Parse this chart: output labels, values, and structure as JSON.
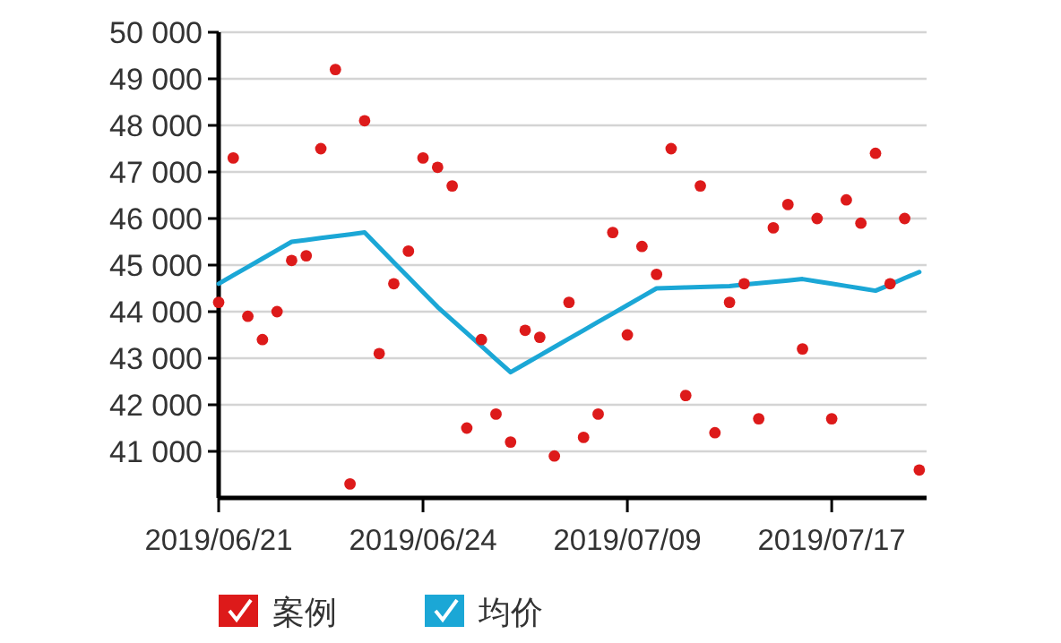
{
  "chart_data": {
    "type": "scatter",
    "categories": [
      "2019/06/21",
      null,
      null,
      null,
      null,
      null,
      null,
      null,
      null,
      null,
      null,
      null,
      null,
      null,
      "2019/06/24",
      null,
      null,
      null,
      null,
      null,
      null,
      null,
      null,
      null,
      null,
      null,
      null,
      null,
      "2019/07/09",
      null,
      null,
      null,
      null,
      null,
      null,
      null,
      null,
      null,
      null,
      null,
      null,
      null,
      "2019/07/17",
      null,
      null,
      null,
      null,
      null,
      null
    ],
    "series": [
      {
        "name": "案例",
        "color": "#dd1a1a",
        "values": [
          44200,
          47300,
          43900,
          43400,
          44000,
          45100,
          45200,
          47500,
          49200,
          40300,
          48100,
          43100,
          44600,
          45300,
          47300,
          47100,
          46700,
          41500,
          43400,
          41800,
          41200,
          43600,
          43450,
          40900,
          44200,
          41300,
          41800,
          45700,
          43500,
          45400,
          44800,
          47500,
          42200,
          46700,
          41400,
          44200,
          44600,
          41700,
          45800,
          46300,
          43200,
          46000,
          41700,
          46400,
          45900,
          47400,
          44600,
          46000,
          40600
        ]
      },
      {
        "name": "均价",
        "type": "line",
        "color": "#1ba7d6",
        "values": [
          44600,
          44780,
          44960,
          45140,
          45320,
          45500,
          45540,
          45580,
          45620,
          45660,
          45700,
          45380,
          45060,
          44740,
          44420,
          44100,
          43820,
          43540,
          43260,
          42980,
          42700,
          42880,
          43060,
          43240,
          43420,
          43600,
          43780,
          43960,
          44140,
          44320,
          44500,
          44510,
          44520,
          44530,
          44540,
          44550,
          44580,
          44610,
          44640,
          44670,
          44700,
          44650,
          44600,
          44550,
          44500,
          44450,
          44580,
          44720,
          44850
        ]
      }
    ],
    "ylim": [
      40000,
      50000
    ],
    "yticks": [
      {
        "value": 41000,
        "label": "41 000"
      },
      {
        "value": 42000,
        "label": "42 000"
      },
      {
        "value": 43000,
        "label": "43 000"
      },
      {
        "value": 44000,
        "label": "44 000"
      },
      {
        "value": 45000,
        "label": "45 000"
      },
      {
        "value": 46000,
        "label": "46 000"
      },
      {
        "value": 47000,
        "label": "47 000"
      },
      {
        "value": 48000,
        "label": "48 000"
      },
      {
        "value": 49000,
        "label": "49 000"
      },
      {
        "value": 50000,
        "label": "50 000"
      }
    ],
    "grid": "y",
    "legend": "bottom"
  }
}
